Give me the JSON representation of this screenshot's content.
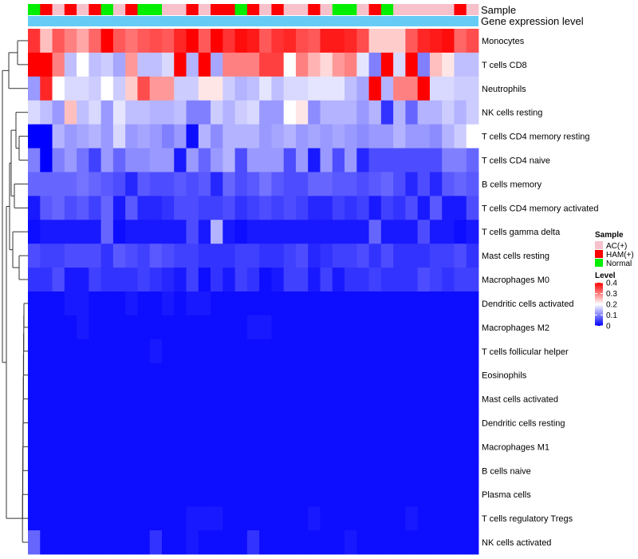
{
  "chart_data": {
    "type": "heatmap",
    "title": "",
    "annotation_tracks": [
      {
        "label": "Sample",
        "type": "categorical"
      },
      {
        "label": "Gene expression level",
        "type": "continuous",
        "color": "#66ccf5"
      }
    ],
    "row_labels": [
      "Monocytes",
      "T cells CD8",
      "Neutrophils",
      "NK cells resting",
      "T cells CD4 memory resting",
      "T cells CD4 naive",
      "B cells memory",
      "T cells CD4 memory activated",
      "T cells gamma delta",
      "Mast cells resting",
      "Macrophages M0",
      "Dendritic cells activated",
      "Macrophages M2",
      "T cells follicular helper",
      "Eosinophils",
      "Mast cells activated",
      "Dendritic cells resting",
      "Macrophages M1",
      "B cells naive",
      "Plasma cells",
      "T cells regulatory  Tregs",
      "NK cells activated"
    ],
    "sample_groups": [
      "Normal",
      "HAM(+)",
      "AC(+)",
      "HAM(+)",
      "AC(+)",
      "HAM(+)",
      "Normal",
      "AC(+)",
      "HAM(+)",
      "Normal",
      "Normal",
      "AC(+)",
      "AC(+)",
      "HAM(+)",
      "AC(+)",
      "HAM(+)",
      "HAM(+)",
      "Normal",
      "HAM(+)",
      "AC(+)",
      "HAM(+)",
      "AC(+)",
      "AC(+)",
      "HAM(+)",
      "AC(+)",
      "Normal",
      "Normal",
      "AC(+)",
      "HAM(+)",
      "Normal",
      "AC(+)",
      "AC(+)",
      "AC(+)",
      "AC(+)",
      "AC(+)",
      "HAM(+)",
      "AC(+)"
    ],
    "values": [
      [
        0.36,
        0.25,
        0.33,
        0.3,
        0.27,
        0.32,
        0.4,
        0.33,
        0.31,
        0.33,
        0.34,
        0.33,
        0.37,
        0.4,
        0.33,
        0.4,
        0.36,
        0.39,
        0.38,
        0.33,
        0.36,
        0.37,
        0.34,
        0.33,
        0.38,
        0.38,
        0.37,
        0.34,
        0.24,
        0.24,
        0.24,
        0.33,
        0.37,
        0.38,
        0.39,
        0.32,
        0.34
      ],
      [
        0.4,
        0.4,
        0.3,
        0.15,
        0.2,
        0.15,
        0.16,
        0.13,
        0.28,
        0.15,
        0.15,
        0.17,
        0.4,
        0.14,
        0.4,
        0.13,
        0.3,
        0.3,
        0.3,
        0.35,
        0.35,
        0.2,
        0.3,
        0.26,
        0.23,
        0.28,
        0.3,
        0.18,
        0.1,
        0.4,
        0.17,
        0.4,
        0.1,
        0.25,
        0.22,
        0.15,
        0.15
      ],
      [
        0.12,
        0.37,
        0.2,
        0.17,
        0.17,
        0.16,
        0.2,
        0.16,
        0.24,
        0.34,
        0.28,
        0.28,
        0.16,
        0.16,
        0.22,
        0.22,
        0.16,
        0.14,
        0.15,
        0.18,
        0.15,
        0.17,
        0.17,
        0.18,
        0.18,
        0.18,
        0.15,
        0.13,
        0.4,
        0.14,
        0.3,
        0.3,
        0.4,
        0.17,
        0.17,
        0.16,
        0.16
      ],
      [
        0.17,
        0.15,
        0.12,
        0.25,
        0.15,
        0.17,
        0.12,
        0.18,
        0.15,
        0.15,
        0.14,
        0.14,
        0.15,
        0.1,
        0.1,
        0.16,
        0.14,
        0.16,
        0.17,
        0.12,
        0.12,
        0.2,
        0.22,
        0.11,
        0.14,
        0.14,
        0.14,
        0.12,
        0.14,
        0.04,
        0.14,
        0.08,
        0.14,
        0.14,
        0.16,
        0.14,
        0.16
      ],
      [
        0.0,
        0.0,
        0.14,
        0.12,
        0.13,
        0.14,
        0.12,
        0.17,
        0.12,
        0.13,
        0.12,
        0.1,
        0.12,
        0.01,
        0.14,
        0.11,
        0.14,
        0.14,
        0.14,
        0.12,
        0.13,
        0.14,
        0.12,
        0.13,
        0.12,
        0.13,
        0.12,
        0.11,
        0.12,
        0.12,
        0.14,
        0.12,
        0.12,
        0.11,
        0.14,
        0.16,
        0.2
      ],
      [
        0.1,
        0.0,
        0.1,
        0.12,
        0.09,
        0.05,
        0.12,
        0.08,
        0.11,
        0.11,
        0.12,
        0.12,
        0.02,
        0.12,
        0.08,
        0.12,
        0.14,
        0.06,
        0.12,
        0.12,
        0.12,
        0.06,
        0.12,
        0.02,
        0.12,
        0.06,
        0.12,
        0.03,
        0.06,
        0.06,
        0.06,
        0.06,
        0.06,
        0.06,
        0.1,
        0.1,
        0.08
      ],
      [
        0.08,
        0.08,
        0.08,
        0.08,
        0.09,
        0.08,
        0.07,
        0.06,
        0.03,
        0.07,
        0.06,
        0.06,
        0.07,
        0.06,
        0.07,
        0.03,
        0.08,
        0.06,
        0.07,
        0.09,
        0.07,
        0.06,
        0.06,
        0.08,
        0.08,
        0.07,
        0.07,
        0.06,
        0.07,
        0.08,
        0.06,
        0.03,
        0.06,
        0.03,
        0.07,
        0.08,
        0.07
      ],
      [
        0.02,
        0.07,
        0.08,
        0.06,
        0.07,
        0.05,
        0.08,
        0.02,
        0.07,
        0.03,
        0.03,
        0.04,
        0.06,
        0.06,
        0.05,
        0.05,
        0.06,
        0.04,
        0.05,
        0.06,
        0.05,
        0.06,
        0.05,
        0.03,
        0.03,
        0.05,
        0.04,
        0.05,
        0.02,
        0.05,
        0.04,
        0.06,
        0.02,
        0.07,
        0.02,
        0.02,
        0.06
      ],
      [
        0.01,
        0.02,
        0.02,
        0.02,
        0.02,
        0.02,
        0.08,
        0.01,
        0.02,
        0.02,
        0.02,
        0.02,
        0.02,
        0.06,
        0.02,
        0.14,
        0.02,
        0.01,
        0.02,
        0.02,
        0.02,
        0.02,
        0.02,
        0.02,
        0.02,
        0.02,
        0.02,
        0.02,
        0.08,
        0.02,
        0.02,
        0.02,
        0.06,
        0.02,
        0.02,
        0.01,
        0.02
      ],
      [
        0.06,
        0.05,
        0.05,
        0.06,
        0.06,
        0.06,
        0.04,
        0.07,
        0.06,
        0.05,
        0.07,
        0.06,
        0.05,
        0.05,
        0.04,
        0.04,
        0.04,
        0.05,
        0.05,
        0.04,
        0.04,
        0.05,
        0.06,
        0.03,
        0.04,
        0.05,
        0.05,
        0.06,
        0.04,
        0.06,
        0.04,
        0.04,
        0.04,
        0.05,
        0.05,
        0.06,
        0.04
      ],
      [
        0.04,
        0.04,
        0.06,
        0.02,
        0.02,
        0.05,
        0.04,
        0.04,
        0.04,
        0.05,
        0.04,
        0.03,
        0.02,
        0.05,
        0.01,
        0.04,
        0.02,
        0.05,
        0.04,
        0.01,
        0.02,
        0.05,
        0.05,
        0.02,
        0.05,
        0.02,
        0.04,
        0.04,
        0.05,
        0.04,
        0.04,
        0.04,
        0.06,
        0.05,
        0.04,
        0.05,
        0.05
      ],
      [
        0.01,
        0.01,
        0.01,
        0.02,
        0.02,
        0.01,
        0.01,
        0.01,
        0.02,
        0.01,
        0.01,
        0.02,
        0.01,
        0.02,
        0.02,
        0.01,
        0.01,
        0.01,
        0.01,
        0.01,
        0.01,
        0.01,
        0.01,
        0.01,
        0.01,
        0.01,
        0.01,
        0.01,
        0.01,
        0.01,
        0.01,
        0.01,
        0.01,
        0.01,
        0.01,
        0.01,
        0.01
      ],
      [
        0.01,
        0.01,
        0.01,
        0.01,
        0.02,
        0.01,
        0.01,
        0.01,
        0.01,
        0.01,
        0.01,
        0.01,
        0.01,
        0.01,
        0.01,
        0.01,
        0.01,
        0.01,
        0.02,
        0.02,
        0.01,
        0.01,
        0.01,
        0.01,
        0.01,
        0.01,
        0.01,
        0.01,
        0.01,
        0.01,
        0.01,
        0.01,
        0.01,
        0.01,
        0.01,
        0.01,
        0.01
      ],
      [
        0.01,
        0.01,
        0.01,
        0.01,
        0.01,
        0.01,
        0.01,
        0.01,
        0.01,
        0.01,
        0.02,
        0.01,
        0.01,
        0.01,
        0.01,
        0.01,
        0.01,
        0.01,
        0.01,
        0.01,
        0.01,
        0.01,
        0.01,
        0.01,
        0.01,
        0.01,
        0.01,
        0.01,
        0.01,
        0.01,
        0.01,
        0.01,
        0.01,
        0.01,
        0.01,
        0.01,
        0.01
      ],
      [
        0.01,
        0.01,
        0.01,
        0.01,
        0.01,
        0.01,
        0.01,
        0.01,
        0.01,
        0.01,
        0.01,
        0.01,
        0.01,
        0.01,
        0.01,
        0.01,
        0.01,
        0.01,
        0.01,
        0.01,
        0.01,
        0.01,
        0.01,
        0.01,
        0.01,
        0.01,
        0.01,
        0.01,
        0.01,
        0.01,
        0.01,
        0.01,
        0.01,
        0.01,
        0.01,
        0.01,
        0.01
      ],
      [
        0.01,
        0.01,
        0.01,
        0.01,
        0.01,
        0.01,
        0.01,
        0.01,
        0.01,
        0.01,
        0.01,
        0.01,
        0.01,
        0.01,
        0.01,
        0.01,
        0.01,
        0.01,
        0.01,
        0.01,
        0.01,
        0.01,
        0.01,
        0.01,
        0.01,
        0.01,
        0.01,
        0.01,
        0.01,
        0.01,
        0.01,
        0.01,
        0.01,
        0.01,
        0.01,
        0.01,
        0.01
      ],
      [
        0.01,
        0.01,
        0.01,
        0.01,
        0.01,
        0.01,
        0.01,
        0.01,
        0.01,
        0.01,
        0.01,
        0.01,
        0.01,
        0.01,
        0.01,
        0.01,
        0.01,
        0.01,
        0.01,
        0.01,
        0.01,
        0.01,
        0.01,
        0.01,
        0.01,
        0.01,
        0.01,
        0.01,
        0.01,
        0.01,
        0.01,
        0.01,
        0.01,
        0.01,
        0.01,
        0.01,
        0.01
      ],
      [
        0.01,
        0.01,
        0.01,
        0.01,
        0.01,
        0.01,
        0.01,
        0.01,
        0.01,
        0.01,
        0.01,
        0.01,
        0.01,
        0.01,
        0.01,
        0.01,
        0.01,
        0.01,
        0.01,
        0.01,
        0.01,
        0.01,
        0.01,
        0.01,
        0.01,
        0.01,
        0.01,
        0.01,
        0.01,
        0.01,
        0.01,
        0.01,
        0.01,
        0.01,
        0.01,
        0.01,
        0.01
      ],
      [
        0.01,
        0.01,
        0.01,
        0.01,
        0.01,
        0.01,
        0.01,
        0.01,
        0.01,
        0.01,
        0.01,
        0.01,
        0.01,
        0.01,
        0.01,
        0.01,
        0.01,
        0.01,
        0.01,
        0.01,
        0.01,
        0.01,
        0.01,
        0.01,
        0.01,
        0.01,
        0.01,
        0.01,
        0.01,
        0.01,
        0.01,
        0.01,
        0.01,
        0.01,
        0.01,
        0.01,
        0.01
      ],
      [
        0.01,
        0.01,
        0.01,
        0.01,
        0.01,
        0.01,
        0.01,
        0.01,
        0.01,
        0.01,
        0.01,
        0.01,
        0.01,
        0.01,
        0.01,
        0.01,
        0.01,
        0.01,
        0.01,
        0.01,
        0.01,
        0.01,
        0.01,
        0.01,
        0.01,
        0.01,
        0.01,
        0.01,
        0.01,
        0.01,
        0.01,
        0.01,
        0.01,
        0.01,
        0.01,
        0.01,
        0.01
      ],
      [
        0.01,
        0.01,
        0.01,
        0.01,
        0.01,
        0.01,
        0.01,
        0.01,
        0.01,
        0.01,
        0.01,
        0.01,
        0.01,
        0.02,
        0.02,
        0.02,
        0.01,
        0.01,
        0.01,
        0.01,
        0.01,
        0.01,
        0.01,
        0.02,
        0.01,
        0.01,
        0.01,
        0.01,
        0.01,
        0.01,
        0.01,
        0.02,
        0.01,
        0.01,
        0.01,
        0.01,
        0.01
      ],
      [
        0.08,
        0.01,
        0.01,
        0.01,
        0.01,
        0.01,
        0.01,
        0.01,
        0.01,
        0.01,
        0.04,
        0.01,
        0.01,
        0.02,
        0.01,
        0.01,
        0.01,
        0.01,
        0.04,
        0.01,
        0.01,
        0.01,
        0.01,
        0.01,
        0.01,
        0.01,
        0.02,
        0.01,
        0.01,
        0.01,
        0.01,
        0.01,
        0.01,
        0.01,
        0.01,
        0.01,
        0.01
      ]
    ],
    "legend": {
      "sample": {
        "title": "Sample",
        "items": [
          {
            "label": "AC(+)",
            "color": "#f7c1cc"
          },
          {
            "label": "HAM(+)",
            "color": "#ff0000"
          },
          {
            "label": "Normal",
            "color": "#00ee00"
          }
        ]
      },
      "level": {
        "title": "Level",
        "ticks": [
          0.4,
          0.3,
          0.2,
          0.1,
          0
        ],
        "range": [
          0,
          0.4
        ],
        "colors": {
          "low": "#0000ff",
          "mid": "#ffffff",
          "high": "#ff0000"
        }
      }
    },
    "legend_position": "right",
    "row_dendrogram": true
  }
}
